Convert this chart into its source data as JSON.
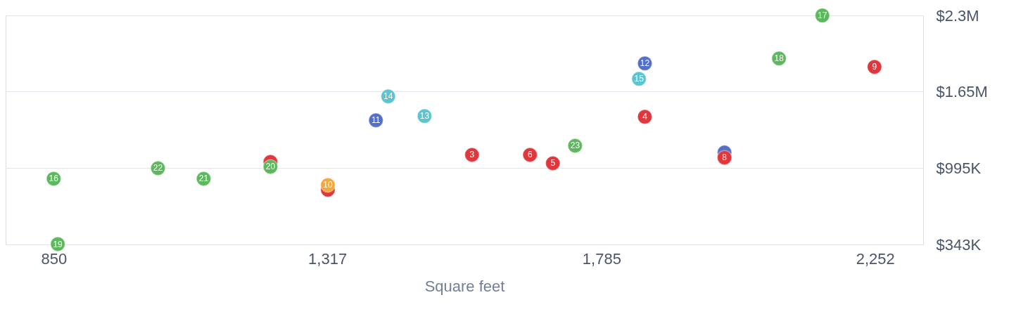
{
  "chart_data": {
    "type": "scatter",
    "xlabel": "Square feet",
    "xlim": [
      768,
      2334
    ],
    "ylim": [
      343000,
      2300000
    ],
    "xticks": [
      850,
      {
        "value": 1317,
        "label": "1,317"
      },
      {
        "value": 1785,
        "label": "1,785"
      },
      {
        "value": 2252,
        "label": "2,252"
      }
    ],
    "yticks": [
      {
        "value": 343000,
        "label": "$343K"
      },
      {
        "value": 995000,
        "label": "$995K"
      },
      {
        "value": 1650000,
        "label": "$1.65M"
      },
      {
        "value": 2300000,
        "label": "$2.3M"
      }
    ],
    "grid": "y",
    "series": [
      {
        "color": "#5470c6",
        "x": [
          1400,
          1859,
          1995
        ],
        "values": [
          1404000,
          1890000,
          1130000
        ]
      },
      {
        "color": "#e0373d",
        "x": [
          1220,
          1318,
          1564,
          1663,
          1702,
          1859,
          1995,
          2251
        ],
        "values": [
          1049000,
          809000,
          1109000,
          1109000,
          1037000,
          1434000,
          1085000,
          1860000
        ]
      },
      {
        "color": "#5cb85c",
        "x": [
          850,
          1028,
          1106,
          1220,
          857,
          1740,
          2088,
          2162
        ],
        "values": [
          905000,
          995000,
          905000,
          1007000,
          346000,
          1187000,
          1933000,
          2300000
        ]
      },
      {
        "color": "#f5a83a",
        "x": [
          1318
        ],
        "values": [
          851000
        ]
      },
      {
        "color": "#5bc4d1",
        "x": [
          1421,
          1483,
          1849
        ],
        "values": [
          1608000,
          1440000,
          1758000
        ]
      }
    ],
    "annotations": [
      {
        "text": "3",
        "x": 1564,
        "y": 1109000
      },
      {
        "text": "4",
        "x": 1859,
        "y": 1434000
      },
      {
        "text": "5",
        "x": 1702,
        "y": 1037000
      },
      {
        "text": "6",
        "x": 1663,
        "y": 1109000
      },
      {
        "text": "8",
        "x": 1995,
        "y": 1085000
      },
      {
        "text": "9",
        "x": 2251,
        "y": 1860000
      },
      {
        "text": "10",
        "x": 1318,
        "y": 851000
      },
      {
        "text": "11",
        "x": 1400,
        "y": 1404000
      },
      {
        "text": "12",
        "x": 1859,
        "y": 1890000
      },
      {
        "text": "13",
        "x": 1483,
        "y": 1440000
      },
      {
        "text": "14",
        "x": 1421,
        "y": 1608000
      },
      {
        "text": "15",
        "x": 1849,
        "y": 1758000
      },
      {
        "text": "16",
        "x": 850,
        "y": 905000
      },
      {
        "text": "17",
        "x": 2162,
        "y": 2300000
      },
      {
        "text": "18",
        "x": 2088,
        "y": 1933000
      },
      {
        "text": "19",
        "x": 857,
        "y": 346000
      },
      {
        "text": "20",
        "x": 1220,
        "y": 1007000
      },
      {
        "text": "21",
        "x": 1106,
        "y": 905000
      },
      {
        "text": "22",
        "x": 1028,
        "y": 995000
      },
      {
        "text": "23",
        "x": 1740,
        "y": 1187000
      }
    ]
  }
}
